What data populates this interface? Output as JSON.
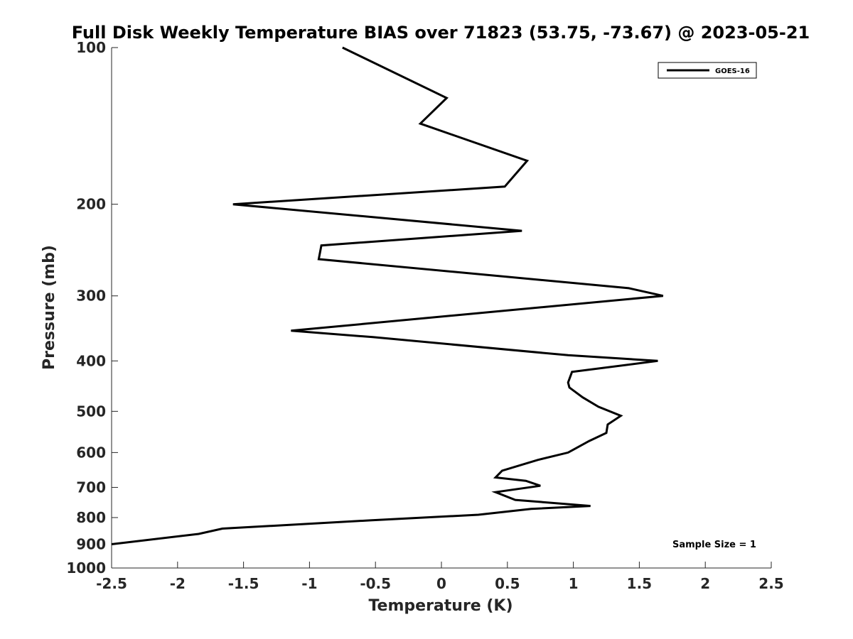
{
  "chart_data": {
    "type": "line",
    "title": "Full Disk Weekly Temperature BIAS over 71823 (53.75, -73.67) @ 2023-05-21",
    "xlabel": "Temperature (K)",
    "ylabel": "Pressure (mb)",
    "xlim": [
      -2.5,
      2.5
    ],
    "ylim": [
      100,
      1000
    ],
    "y_scale": "log",
    "y_reversed": true,
    "x_ticks": [
      "-2.5",
      "-2",
      "-1.5",
      "-1",
      "-0.5",
      "0",
      "0.5",
      "1",
      "1.5",
      "2",
      "2.5"
    ],
    "y_ticks": [
      "100",
      "200",
      "300",
      "400",
      "500",
      "600",
      "700",
      "800",
      "900",
      "1000"
    ],
    "grid": false,
    "legend_position": "top-right",
    "series": [
      {
        "name": "GOES-16",
        "color": "#000000",
        "x": [
          -0.75,
          0.04,
          -0.16,
          0.65,
          0.48,
          -1.58,
          0.61,
          -0.91,
          -0.93,
          1.42,
          1.68,
          -1.14,
          -0.52,
          0.96,
          1.64,
          0.99,
          0.96,
          0.97,
          1.07,
          1.19,
          1.36,
          1.26,
          1.25,
          1.12,
          0.96,
          0.73,
          0.46,
          0.41,
          0.64,
          0.75,
          0.41,
          0.56,
          1.13,
          0.68,
          0.28,
          -0.54,
          -1.66,
          -1.84,
          -2.5
        ],
        "y": [
          100,
          125,
          140,
          165,
          185,
          200,
          225,
          240,
          255,
          290,
          300,
          350,
          360,
          390,
          400,
          420,
          440,
          450,
          470,
          490,
          510,
          530,
          550,
          570,
          600,
          620,
          650,
          670,
          680,
          695,
          715,
          740,
          760,
          770,
          790,
          810,
          840,
          860,
          900
        ]
      }
    ],
    "annotation": "Sample Size = 1"
  }
}
